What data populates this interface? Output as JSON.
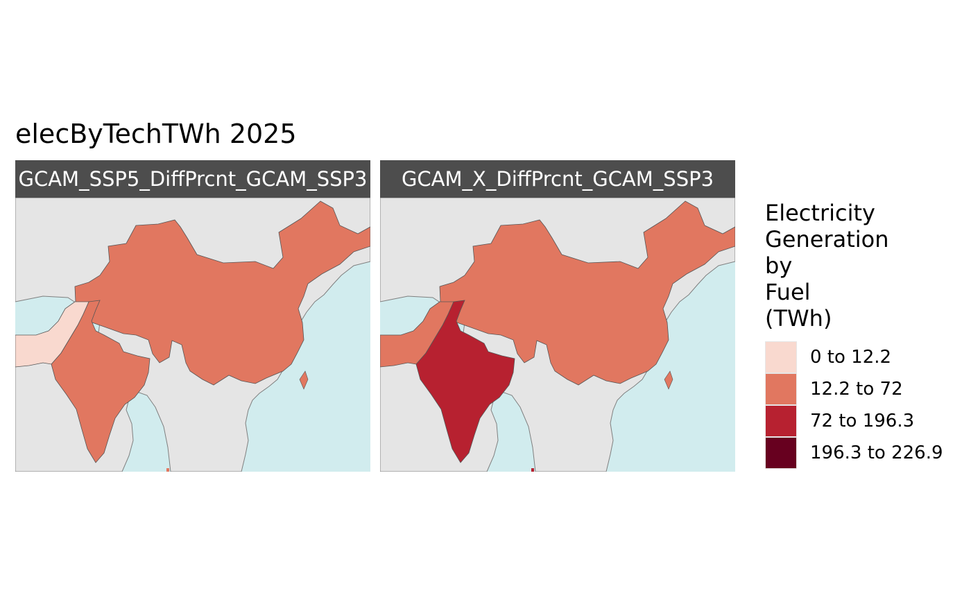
{
  "title": "elecByTechTWh 2025",
  "panels": [
    {
      "strip_label": "GCAM_SSP5_DiffPrcnt_GCAM_SSP3",
      "region_classes": {
        "china": 1,
        "india": 1,
        "pakistan": 0
      }
    },
    {
      "strip_label": "GCAM_X_DiffPrcnt_GCAM_SSP3",
      "region_classes": {
        "china": 1,
        "india": 2,
        "pakistan": 1
      }
    }
  ],
  "legend": {
    "title_lines": [
      "Electricity",
      "Generation",
      "by",
      "Fuel",
      "(TWh)"
    ],
    "items": [
      {
        "label": "0 to 12.2",
        "color": "#f9d9cf"
      },
      {
        "label": "12.2 to 72",
        "color": "#e17760"
      },
      {
        "label": "72 to 196.3",
        "color": "#b72130"
      },
      {
        "label": "196.3 to 226.9",
        "color": "#67001f"
      }
    ]
  },
  "colors": {
    "ocean": "#d1ecee",
    "land": "#e5e5e5",
    "border": "#7f7f7f",
    "strip": "#4d4d4d"
  }
}
